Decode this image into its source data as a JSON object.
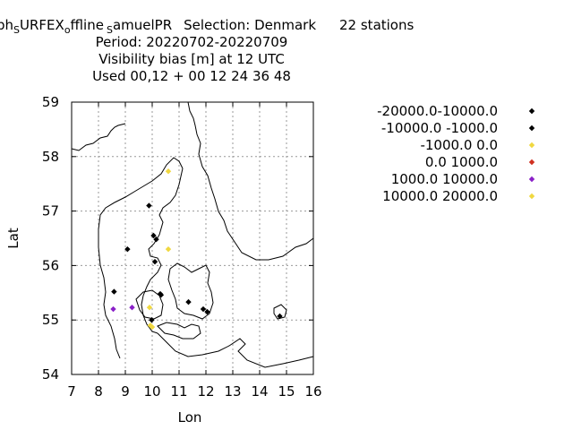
{
  "title": {
    "line1_parts": [
      "ph",
      "S",
      "URFEX",
      "o",
      "ffline",
      "S",
      "amuelPR",
      "Selection: Denmark",
      "22 stations"
    ],
    "line2": "Period: 20220702-20220709",
    "line3": "Visibility bias [m] at  12 UTC",
    "line4": "Used  00,12  + 00 12 24 36 48"
  },
  "chart_data": {
    "type": "scatter",
    "xlabel": "Lon",
    "ylabel": "Lat",
    "xlim": [
      7,
      16
    ],
    "ylim": [
      54,
      59
    ],
    "xticks": [
      "7",
      "8",
      "9",
      "10",
      "11",
      "12",
      "13",
      "14",
      "15",
      "16"
    ],
    "yticks": [
      "54",
      "55",
      "56",
      "57",
      "58",
      "59"
    ],
    "grid": true,
    "legend_position": "right",
    "series": [
      {
        "name": "-20000.0-10000.0",
        "color": "#000000",
        "points": []
      },
      {
        "name": "-10000.0 -1000.0",
        "color": "#000000",
        "points": [
          [
            8.58,
            55.52
          ],
          [
            9.08,
            56.3
          ],
          [
            9.88,
            57.1
          ],
          [
            10.05,
            56.55
          ],
          [
            10.15,
            56.48
          ],
          [
            10.1,
            56.07
          ],
          [
            10.3,
            55.48
          ],
          [
            10.33,
            55.46
          ],
          [
            11.35,
            55.33
          ],
          [
            11.9,
            55.2
          ],
          [
            12.05,
            55.15
          ],
          [
            14.75,
            55.07
          ],
          [
            9.98,
            55.0
          ]
        ]
      },
      {
        "name": "-1000.0 0.0",
        "color": "#f0d840",
        "points": [
          [
            10.6,
            57.73
          ],
          [
            10.6,
            56.3
          ],
          [
            9.9,
            55.23
          ],
          [
            10.0,
            54.87
          ]
        ]
      },
      {
        "name": "0.0 1000.0",
        "color": "#d03020",
        "points": []
      },
      {
        "name": "1000.0 10000.0",
        "color": "#8a20c8",
        "points": [
          [
            8.55,
            55.2
          ],
          [
            9.25,
            55.23
          ]
        ]
      },
      {
        "name": "10000.0 20000.0",
        "color": "#f0d840",
        "points": [
          [
            9.93,
            54.9
          ]
        ]
      }
    ]
  }
}
